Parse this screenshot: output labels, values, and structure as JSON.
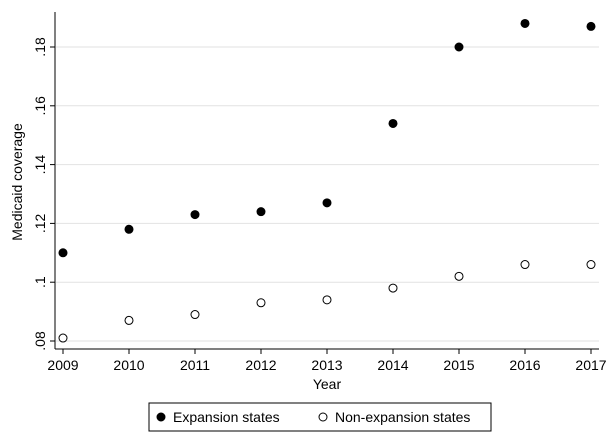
{
  "chart_data": {
    "type": "scatter",
    "xlabel": "Year",
    "ylabel": "Medicaid coverage",
    "xlim": [
      2009,
      2017
    ],
    "ylim": [
      0.08,
      0.18
    ],
    "x_ticks": [
      "2009",
      "2010",
      "2011",
      "2012",
      "2013",
      "2014",
      "2015",
      "2016",
      "2017"
    ],
    "y_ticks": [
      ".08",
      ".1",
      ".12",
      ".14",
      ".16",
      ".18"
    ],
    "grid": "horizontal",
    "legend_position": "bottom",
    "x": [
      2009,
      2010,
      2011,
      2012,
      2013,
      2014,
      2015,
      2016,
      2017
    ],
    "series": [
      {
        "name": "Expansion states",
        "marker": "filled-circle",
        "color": "#000000",
        "values": [
          0.11,
          0.118,
          0.123,
          0.124,
          0.127,
          0.154,
          0.18,
          0.188,
          0.187
        ]
      },
      {
        "name": "Non-expansion states",
        "marker": "hollow-circle",
        "color": "#000000",
        "values": [
          0.081,
          0.087,
          0.089,
          0.093,
          0.094,
          0.098,
          0.102,
          0.106,
          0.106
        ]
      }
    ]
  }
}
